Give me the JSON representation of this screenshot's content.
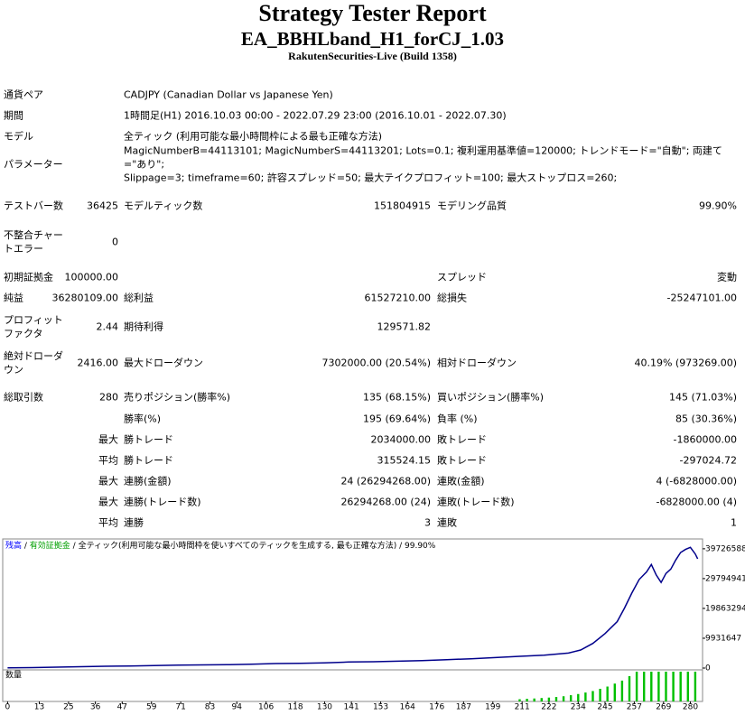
{
  "header": {
    "title": "Strategy Tester Report",
    "subtitle": "EA_BBHLband_H1_forCJ_1.03",
    "server": "RakutenSecurities-Live (Build 1358)"
  },
  "rows": [
    {
      "l1": "通貨ペア",
      "text": [
        "CADJPY (Canadian Dollar vs Japanese Yen)"
      ]
    },
    {
      "l1": "期間",
      "text": [
        "1時間足(H1) 2016.10.03 00:00 - 2022.07.29 23:00 (2016.10.01 - 2022.07.30)"
      ]
    },
    {
      "l1": "モデル",
      "text": [
        "全ティック (利用可能な最小時間枠による最も正確な方法)"
      ]
    },
    {
      "l1": "パラメーター",
      "text": [
        "MagicNumberB=44113101; MagicNumberS=44113201; Lots=0.1; 複利運用基準値=120000; トレンドモード=\"自動\"; 両建て=\"あり\";",
        "Slippage=3; timeframe=60; 許容スプレッド=50; 最大テイクプロフィット=100; 最大ストップロス=260;"
      ]
    },
    {
      "l1": "テストバー数",
      "v1": "36425",
      "l2": "モデルティック数",
      "v2": "151804915",
      "l3": "モデリング品質",
      "v3": "99.90%"
    },
    {
      "l1": "不整合チャートエラー",
      "v1": "0"
    },
    {
      "l1": "初期証拠金",
      "v1": "100000.00",
      "l3": "スプレッド",
      "v3": "変動"
    },
    {
      "l1": "純益",
      "v1": "36280109.00",
      "l2": "総利益",
      "v2": "61527210.00",
      "l3": "総損失",
      "v3": "-25247101.00"
    },
    {
      "l1": "プロフィットファクタ",
      "v1": "2.44",
      "l2": "期待利得",
      "v2": "129571.82"
    },
    {
      "l1": "絶対ドローダウン",
      "v1": "2416.00",
      "l2": "最大ドローダウン",
      "v2": "7302000.00 (20.54%)",
      "l3": "相対ドローダウン",
      "v3": "40.19% (973269.00)"
    },
    {
      "l1": "総取引数",
      "v1": "280",
      "l2": "売りポジション(勝率%)",
      "v2": "135 (68.15%)",
      "l3": "買いポジション(勝率%)",
      "v3": "145 (71.03%)"
    },
    {
      "l2": "勝率(%)",
      "v2": "195 (69.64%)",
      "l3": "負率 (%)",
      "v3": "85 (30.36%)"
    },
    {
      "v1": "最大",
      "l2": "勝トレード",
      "v2": "2034000.00",
      "l3": "敗トレード",
      "v3": "-1860000.00"
    },
    {
      "v1": "平均",
      "l2": "勝トレード",
      "v2": "315524.15",
      "l3": "敗トレード",
      "v3": "-297024.72"
    },
    {
      "v1": "最大",
      "l2": "連勝(金額)",
      "v2": "24 (26294268.00)",
      "l3": "連敗(金額)",
      "v3": "4 (-6828000.00)"
    },
    {
      "v1": "最大",
      "l2": "連勝(トレード数)",
      "v2": "26294268.00 (24)",
      "l3": "連敗(トレード数)",
      "v3": "-6828000.00 (4)"
    },
    {
      "v1": "平均",
      "l2": "連勝",
      "v2": "3",
      "l3": "連敗",
      "v3": "1"
    }
  ],
  "chart_data": {
    "type": "line",
    "legend": [
      {
        "text": "残高",
        "color": "#0000ff"
      },
      {
        "text": "有効証拠金",
        "color": "#00a000"
      },
      {
        "text": "全ティック(利用可能な最小時間枠を使いすべてのティックを生成する, 最も正確な方法)",
        "color": "#000000"
      },
      {
        "text": "99.90%",
        "color": "#000000"
      }
    ],
    "series": [
      {
        "name": "残高",
        "color": "#00008b",
        "x": [
          0,
          10,
          20,
          30,
          40,
          50,
          60,
          70,
          80,
          90,
          100,
          110,
          120,
          130,
          140,
          150,
          160,
          170,
          180,
          190,
          200,
          210,
          220,
          230,
          235,
          240,
          245,
          250,
          253,
          256,
          259,
          262,
          264,
          266,
          268,
          270,
          272,
          274,
          276,
          278,
          280,
          282,
          283
        ],
        "values": [
          100000,
          150000,
          300000,
          450000,
          600000,
          700000,
          850000,
          950000,
          1050000,
          1100000,
          1300000,
          1500000,
          1600000,
          1750000,
          2000000,
          2100000,
          2300000,
          2500000,
          2800000,
          3100000,
          3500000,
          3900000,
          4300000,
          5000000,
          6000000,
          8200000,
          11500000,
          15500000,
          20000000,
          25000000,
          29500000,
          32000000,
          34500000,
          31000000,
          28500000,
          31500000,
          33000000,
          36000000,
          38500000,
          39500000,
          40200000,
          38000000,
          36380109
        ]
      }
    ],
    "xlim": [
      -2,
      285
    ],
    "ylim": [
      0,
      43000000
    ],
    "xticks": [
      0,
      13,
      25,
      36,
      47,
      59,
      71,
      83,
      94,
      106,
      118,
      130,
      141,
      153,
      164,
      176,
      187,
      199,
      211,
      222,
      234,
      245,
      257,
      269,
      280
    ],
    "yticks": [
      0,
      9931647,
      19863294,
      29794941,
      39726588
    ],
    "volume": {
      "label": "数量",
      "color": "#00c000",
      "ylim": [
        0,
        20
      ],
      "x": [
        210,
        213,
        216,
        219,
        222,
        225,
        228,
        231,
        234,
        237,
        240,
        243,
        246,
        249,
        252,
        255,
        258,
        261,
        264,
        267,
        270,
        273,
        276,
        279,
        282
      ],
      "values": [
        1.5,
        1.8,
        2,
        2.3,
        2.6,
        3,
        3.5,
        4.2,
        5,
        6,
        7,
        8.5,
        10,
        12,
        14,
        17,
        20,
        20,
        20,
        20,
        20,
        20,
        20,
        20,
        20
      ]
    }
  }
}
